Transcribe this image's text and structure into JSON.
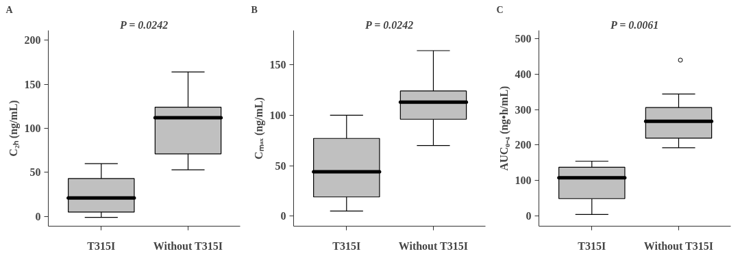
{
  "chart_data": [
    {
      "type": "box",
      "title": "A",
      "ylabel": "C₂ₕ (ng/mL)",
      "categories": [
        "T315I",
        "Without T315I"
      ],
      "ylim": [
        -11,
        211
      ],
      "yticks": [
        0,
        50,
        100,
        150,
        200
      ],
      "grid": false,
      "annotations": [
        "P = 0.0242"
      ],
      "series": [
        {
          "color": "#c0c0c0",
          "boxes": [
            {
              "low": -1,
              "q1": 5,
              "median": 21,
              "q3": 43,
              "high": 60
            },
            {
              "low": 53,
              "q1": 71,
              "median": 112,
              "q3": 124,
              "high": 164
            }
          ]
        }
      ]
    },
    {
      "type": "box",
      "title": "B",
      "ylabel": "Cₘₐₓ (ng/mL)",
      "categories": [
        "T315I",
        "Without T315I"
      ],
      "ylim": [
        -10,
        184
      ],
      "yticks": [
        0,
        50,
        100,
        150
      ],
      "grid": false,
      "annotations": [
        "P = 0.0242"
      ],
      "series": [
        {
          "color": "#c0c0c0",
          "boxes": [
            {
              "low": 5,
              "q1": 19,
              "median": 44,
              "q3": 77,
              "high": 100
            },
            {
              "low": 70,
              "q1": 96,
              "median": 113,
              "q3": 124,
              "high": 164
            }
          ]
        }
      ]
    },
    {
      "type": "box",
      "title": "C",
      "ylabel": "AUC₀₋₄ (ng•h/mL)",
      "categories": [
        "T315I",
        "Without T315I"
      ],
      "ylim": [
        -30,
        524
      ],
      "yticks": [
        0,
        100,
        200,
        300,
        400,
        500
      ],
      "grid": false,
      "annotations": [
        "P = 0.0061"
      ],
      "series": [
        {
          "color": "#c0c0c0",
          "boxes": [
            {
              "low": 3,
              "q1": 48,
              "median": 107,
              "q3": 137,
              "high": 154
            },
            {
              "low": 192,
              "q1": 219,
              "median": 267,
              "q3": 306,
              "high": 344,
              "outliers": [
                440
              ]
            }
          ]
        }
      ]
    }
  ]
}
